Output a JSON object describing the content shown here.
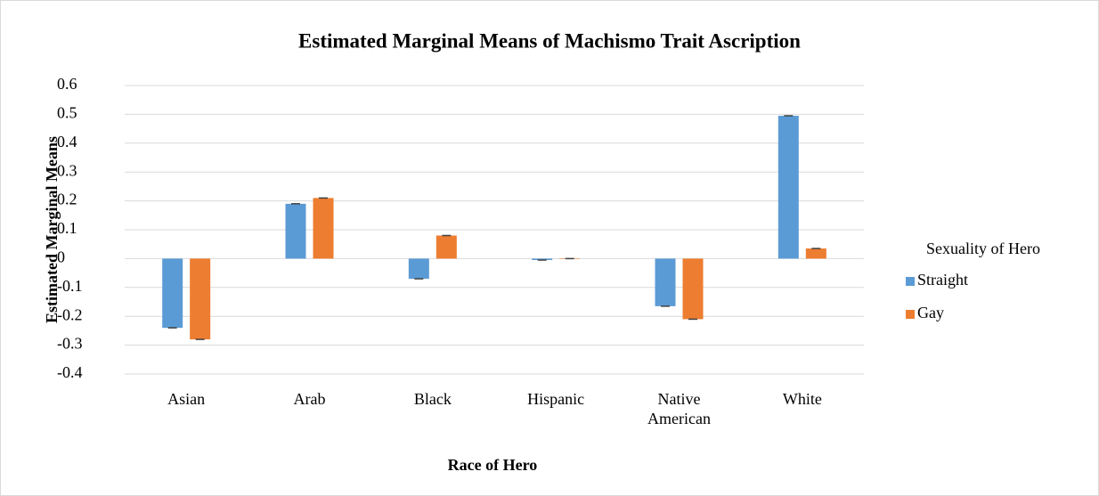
{
  "chart_data": {
    "type": "bar",
    "title": "Estimated Marginal Means of Machismo Trait Ascription",
    "x_label": "Race of Hero",
    "y_label": "Estimated Marginal Means",
    "legend_title": "Sexuality of Hero",
    "categories": [
      "Asian",
      "Arab",
      "Black",
      "Hispanic",
      "Native American",
      "White"
    ],
    "series": [
      {
        "name": "Straight",
        "color": "#5b9bd5",
        "values": [
          -0.24,
          0.19,
          -0.07,
          -0.005,
          -0.165,
          0.495
        ]
      },
      {
        "name": "Gay",
        "color": "#ed7d31",
        "values": [
          -0.28,
          0.21,
          0.08,
          0,
          -0.21,
          0.035
        ]
      }
    ],
    "ylim": [
      -0.4,
      0.6
    ],
    "yticks": [
      -0.4,
      -0.3,
      -0.2,
      -0.1,
      0,
      0.1,
      0.2,
      0.3,
      0.4,
      0.5,
      0.6
    ],
    "grid": true,
    "legend": "right"
  }
}
